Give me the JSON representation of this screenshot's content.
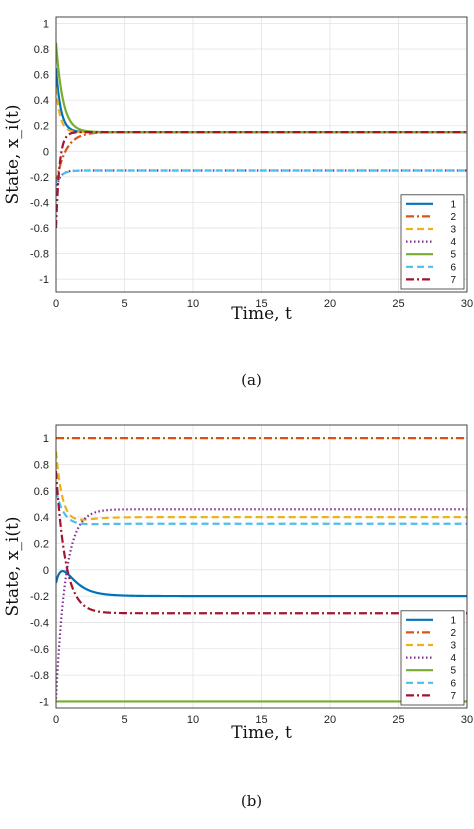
{
  "chart_data": [
    {
      "type": "line",
      "caption": "(a)",
      "xlabel": "Time, t",
      "ylabel": "State, x_i(t)",
      "xlim": [
        0,
        30
      ],
      "ylim": [
        -1.1,
        1.05
      ],
      "xticks": [
        0,
        5,
        10,
        15,
        20,
        25,
        30
      ],
      "yticks": [
        -1,
        -0.8,
        -0.6,
        -0.4,
        -0.2,
        0,
        0.2,
        0.4,
        0.6,
        0.8,
        1
      ],
      "grid": true,
      "legend_position": "lower-right",
      "series": [
        {
          "name": "1",
          "color": "#0072BD",
          "style": "solid",
          "x0": 0.65,
          "final": 0.15,
          "tau": 0.35
        },
        {
          "name": "2",
          "color": "#D95319",
          "style": "dashdot",
          "x0": -0.25,
          "final": 0.15,
          "tau": 0.7
        },
        {
          "name": "3",
          "color": "#EDB120",
          "style": "dashed",
          "x0": 0.5,
          "final": 0.15,
          "tau": 0.3
        },
        {
          "name": "4",
          "color": "#7E2F8E",
          "style": "dotted",
          "x0": -0.3,
          "final": -0.15,
          "tau": 0.3
        },
        {
          "name": "5",
          "color": "#77AC30",
          "style": "solid",
          "x0": 0.85,
          "final": 0.15,
          "tau": 0.5
        },
        {
          "name": "6",
          "color": "#4DBEEE",
          "style": "dashed",
          "x0": -0.25,
          "final": -0.15,
          "tau": 0.4
        },
        {
          "name": "7",
          "color": "#A2142F",
          "style": "dashdot",
          "x0": -0.6,
          "final": 0.15,
          "tau": 0.25
        }
      ]
    },
    {
      "type": "line",
      "caption": "(b)",
      "xlabel": "Time, t",
      "ylabel": "State, x_i(t)",
      "xlim": [
        0,
        30
      ],
      "ylim": [
        -1.05,
        1.1
      ],
      "xticks": [
        0,
        5,
        10,
        15,
        20,
        25,
        30
      ],
      "yticks": [
        -1,
        -0.8,
        -0.6,
        -0.4,
        -0.2,
        0,
        0.2,
        0.4,
        0.6,
        0.8,
        1
      ],
      "grid": true,
      "legend_position": "lower-right",
      "series": [
        {
          "name": "1",
          "color": "#0072BD",
          "style": "solid",
          "x0": -0.1,
          "final": -0.2,
          "tau": 1.5,
          "bump": 0.12
        },
        {
          "name": "2",
          "color": "#D95319",
          "style": "dashdot",
          "x0": 1.0,
          "final": 1.0,
          "tau": 1.0
        },
        {
          "name": "3",
          "color": "#EDB120",
          "style": "dashed",
          "x0": 0.9,
          "final": 0.4,
          "tau": 0.5,
          "dip": -0.05
        },
        {
          "name": "4",
          "color": "#7E2F8E",
          "style": "dotted",
          "x0": -0.98,
          "final": 0.46,
          "tau": 0.7
        },
        {
          "name": "5",
          "color": "#77AC30",
          "style": "solid",
          "x0": -1.0,
          "final": -1.0,
          "tau": 1.0
        },
        {
          "name": "6",
          "color": "#4DBEEE",
          "style": "dashed",
          "x0": 0.6,
          "final": 0.35,
          "tau": 0.9,
          "dip": -0.05
        },
        {
          "name": "7",
          "color": "#A2142F",
          "style": "dashdot",
          "x0": 0.75,
          "final": -0.33,
          "tau": 0.7
        }
      ]
    }
  ]
}
